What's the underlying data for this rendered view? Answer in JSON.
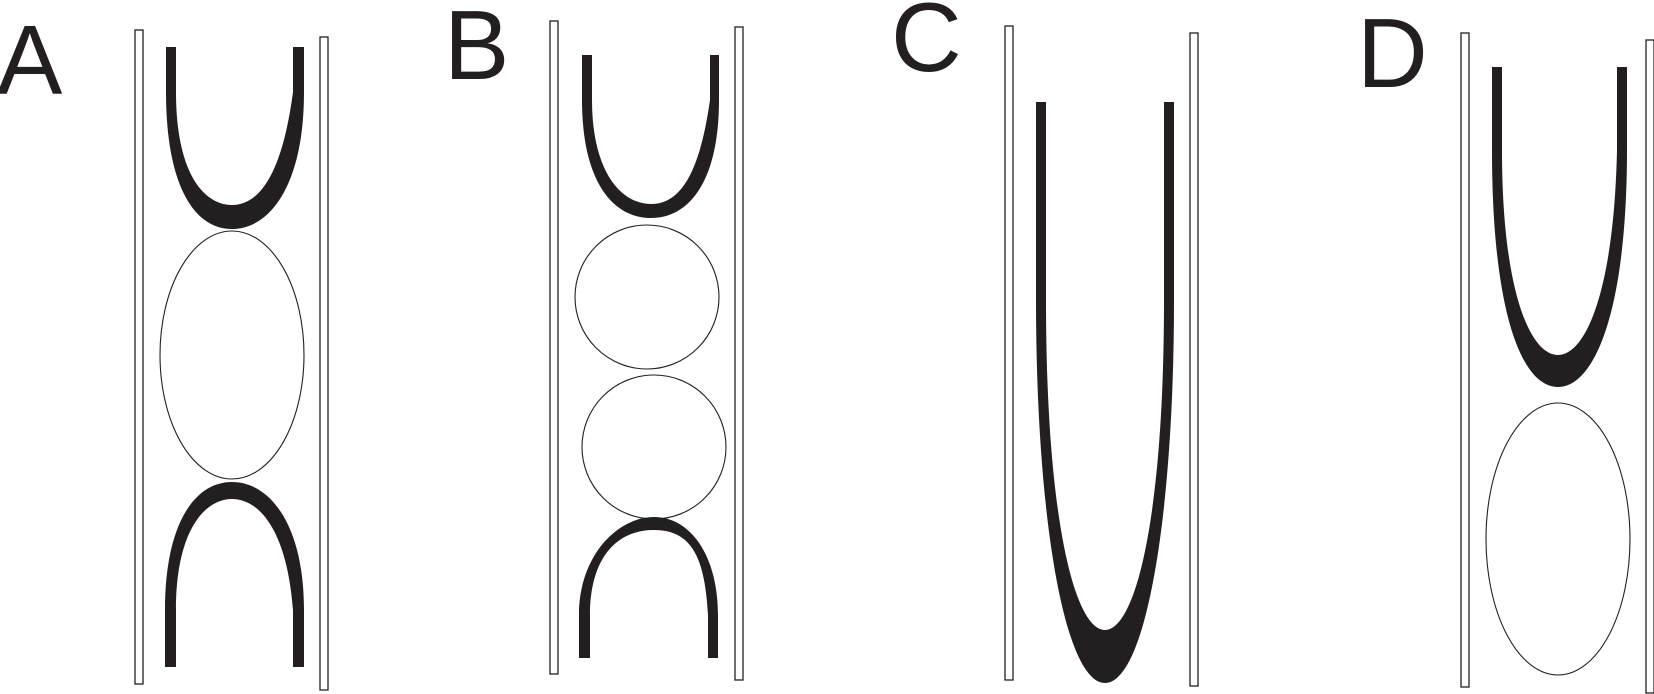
{
  "figure": {
    "panels": [
      {
        "id": "A",
        "label": "A"
      },
      {
        "id": "B",
        "label": "B"
      },
      {
        "id": "C",
        "label": "C"
      },
      {
        "id": "D",
        "label": "D"
      }
    ],
    "colors": {
      "ink": "#231f20",
      "background": "#ffffff"
    }
  }
}
